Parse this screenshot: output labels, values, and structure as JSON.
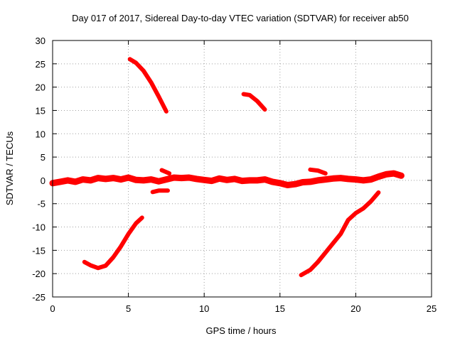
{
  "chart_data": {
    "type": "scatter",
    "title": "Day 017 of 2017, Sidereal Day-to-day VTEC variation (SDTVAR) for receiver ab50",
    "xlabel": "GPS time / hours",
    "ylabel": "SDTVAR / TECUs",
    "xlim": [
      0,
      25
    ],
    "ylim": [
      -25,
      30
    ],
    "xticks": [
      0,
      5,
      10,
      15,
      20,
      25
    ],
    "yticks": [
      -25,
      -20,
      -15,
      -10,
      -5,
      0,
      5,
      10,
      15,
      20,
      25,
      30
    ],
    "x_tick_labels": [
      "0",
      "5",
      "10",
      "15",
      "20",
      "25"
    ],
    "y_tick_labels": [
      "-25",
      "-20",
      "-15",
      "-10",
      "-5",
      "0",
      "5",
      "10",
      "15",
      "20",
      "25",
      "30"
    ],
    "grid": true,
    "marker_color": "#ff0000",
    "series": [
      {
        "name": "arc-near-zero",
        "x": [
          0.0,
          0.5,
          1.0,
          1.5,
          2.0,
          2.5,
          3.0,
          3.5,
          4.0,
          4.5,
          5.0,
          5.5,
          6.0,
          6.5,
          7.0,
          7.5,
          8.0,
          8.5,
          9.0,
          9.5,
          10.0,
          10.5,
          11.0,
          11.5,
          12.0,
          12.5,
          13.0,
          13.5,
          14.0,
          14.5,
          15.0,
          15.5,
          16.0,
          16.5,
          17.0,
          17.5,
          18.0,
          18.5,
          19.0,
          19.5,
          20.0,
          20.5,
          21.0,
          21.5,
          22.0,
          22.5,
          23.0
        ],
        "y": [
          -0.6,
          -0.3,
          0.0,
          -0.3,
          0.2,
          0.0,
          0.5,
          0.3,
          0.5,
          0.2,
          0.6,
          0.1,
          0.0,
          0.2,
          -0.2,
          0.2,
          0.6,
          0.5,
          0.6,
          0.3,
          0.1,
          -0.1,
          0.4,
          0.1,
          0.3,
          -0.1,
          0.0,
          0.0,
          0.2,
          -0.3,
          -0.6,
          -1.0,
          -0.8,
          -0.4,
          -0.3,
          0.0,
          0.2,
          0.4,
          0.5,
          0.3,
          0.2,
          0.0,
          0.2,
          0.8,
          1.3,
          1.5,
          1.0
        ]
      },
      {
        "name": "arc-2",
        "x": [
          5.1,
          5.5,
          6.0,
          6.5,
          7.0,
          7.5
        ],
        "y": [
          26.0,
          25.2,
          23.5,
          21.0,
          18.0,
          14.8
        ]
      },
      {
        "name": "arc-3",
        "x": [
          12.6,
          13.0,
          13.5,
          14.0
        ],
        "y": [
          18.5,
          18.3,
          17.0,
          15.2
        ]
      },
      {
        "name": "arc-4",
        "x": [
          2.1,
          2.5,
          3.0,
          3.5,
          4.0,
          4.5,
          5.0,
          5.5,
          5.9
        ],
        "y": [
          -17.5,
          -18.2,
          -18.8,
          -18.3,
          -16.5,
          -14.2,
          -11.5,
          -9.2,
          -8.0
        ]
      },
      {
        "name": "arc-5",
        "x": [
          16.4,
          17.0,
          17.5,
          18.0,
          18.5,
          19.0,
          19.5,
          20.0,
          20.5,
          21.0,
          21.5
        ],
        "y": [
          -20.3,
          -19.2,
          -17.5,
          -15.5,
          -13.5,
          -11.5,
          -8.5,
          -7.0,
          -6.0,
          -4.5,
          -2.6
        ]
      },
      {
        "name": "arc-6",
        "x": [
          6.6,
          7.0,
          7.6
        ],
        "y": [
          -2.5,
          -2.2,
          -2.2
        ]
      },
      {
        "name": "arc-7",
        "x": [
          7.2,
          7.7
        ],
        "y": [
          2.2,
          1.5
        ]
      },
      {
        "name": "arc-8",
        "x": [
          17.0,
          17.5,
          18.0
        ],
        "y": [
          2.3,
          2.1,
          1.5
        ]
      }
    ]
  }
}
